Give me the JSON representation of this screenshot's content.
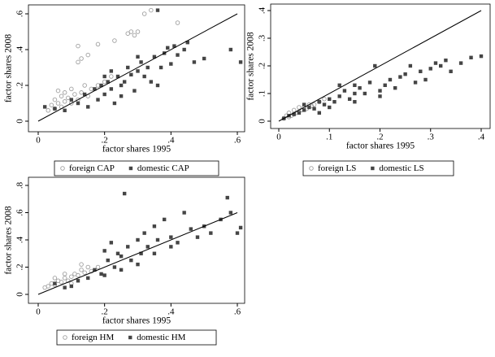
{
  "chart_data": [
    {
      "type": "scatter",
      "xlabel": "factor shares 1995",
      "ylabel": "factor shares 2008",
      "diagonal": true,
      "xlim": [
        0,
        0.6
      ],
      "ylim": [
        0,
        0.6
      ],
      "xticks": [
        0,
        {
          "value": 0.2,
          "label": ".2"
        },
        {
          "value": 0.4,
          "label": ".4"
        },
        {
          "value": 0.6,
          "label": ".6"
        }
      ],
      "yticks": [
        0,
        {
          "value": 0.2,
          "label": ".2"
        },
        {
          "value": 0.4,
          "label": ".4"
        },
        {
          "value": 0.6,
          "label": ".6"
        }
      ],
      "series": [
        {
          "name": "foreign CAP",
          "color": "#a0a0a0",
          "marker": "circle-open",
          "x": [
            0.03,
            0.04,
            0.05,
            0.05,
            0.06,
            0.07,
            0.07,
            0.08,
            0.09,
            0.1,
            0.1,
            0.11,
            0.12,
            0.13,
            0.14,
            0.15,
            0.16,
            0.18,
            0.2,
            0.22,
            0.12,
            0.13,
            0.15,
            0.12,
            0.18,
            0.23,
            0.27,
            0.28,
            0.29,
            0.3,
            0.32,
            0.34,
            0.42,
            0.08,
            0.06
          ],
          "values": [
            0.06,
            0.09,
            0.07,
            0.12,
            0.1,
            0.08,
            0.14,
            0.11,
            0.13,
            0.1,
            0.18,
            0.15,
            0.12,
            0.16,
            0.2,
            0.14,
            0.18,
            0.2,
            0.22,
            0.25,
            0.33,
            0.35,
            0.37,
            0.42,
            0.43,
            0.45,
            0.49,
            0.5,
            0.48,
            0.5,
            0.6,
            0.62,
            0.55,
            0.16,
            0.17
          ]
        },
        {
          "name": "domestic CAP",
          "color": "#454545",
          "marker": "square",
          "x": [
            0.02,
            0.05,
            0.08,
            0.1,
            0.12,
            0.14,
            0.15,
            0.17,
            0.18,
            0.19,
            0.2,
            0.21,
            0.22,
            0.23,
            0.24,
            0.25,
            0.26,
            0.27,
            0.28,
            0.29,
            0.3,
            0.31,
            0.32,
            0.33,
            0.34,
            0.35,
            0.36,
            0.37,
            0.38,
            0.4,
            0.41,
            0.42,
            0.44,
            0.45,
            0.47,
            0.5,
            0.58,
            0.61,
            0.2,
            0.25,
            0.3,
            0.22,
            0.36,
            0.39
          ],
          "values": [
            0.08,
            0.07,
            0.06,
            0.12,
            0.1,
            0.15,
            0.08,
            0.18,
            0.12,
            0.2,
            0.15,
            0.22,
            0.18,
            0.1,
            0.25,
            0.2,
            0.22,
            0.3,
            0.26,
            0.17,
            0.28,
            0.33,
            0.25,
            0.3,
            0.22,
            0.36,
            0.62,
            0.3,
            0.38,
            0.32,
            0.42,
            0.37,
            0.4,
            0.44,
            0.33,
            0.35,
            0.4,
            0.33,
            0.25,
            0.14,
            0.36,
            0.28,
            0.2,
            0.41
          ]
        }
      ]
    },
    {
      "type": "scatter",
      "xlabel": "factor shares 1995",
      "ylabel": "factor shares 2008",
      "diagonal": true,
      "xlim": [
        0,
        0.4
      ],
      "ylim": [
        0,
        0.4
      ],
      "xticks": [
        0,
        {
          "value": 0.1,
          "label": ".1"
        },
        {
          "value": 0.2,
          "label": ".2"
        },
        {
          "value": 0.3,
          "label": ".3"
        },
        {
          "value": 0.4,
          "label": ".4"
        }
      ],
      "yticks": [
        0,
        {
          "value": 0.1,
          "label": ".1"
        },
        {
          "value": 0.2,
          "label": ".2"
        },
        {
          "value": 0.3,
          "label": ".3"
        },
        {
          "value": 0.4,
          "label": ".4"
        }
      ],
      "series": [
        {
          "name": "foreign LS",
          "color": "#a0a0a0",
          "marker": "circle-open",
          "x": [
            0.01,
            0.015,
            0.02,
            0.02,
            0.025,
            0.03,
            0.03,
            0.035,
            0.04,
            0.04,
            0.045,
            0.05,
            0.055,
            0.06,
            0.065,
            0.07,
            0.08,
            0.09
          ],
          "values": [
            0.01,
            0.02,
            0.015,
            0.03,
            0.02,
            0.025,
            0.04,
            0.03,
            0.035,
            0.05,
            0.04,
            0.05,
            0.045,
            0.06,
            0.055,
            0.06,
            0.07,
            0.08
          ]
        },
        {
          "name": "domestic LS",
          "color": "#454545",
          "marker": "square",
          "x": [
            0.01,
            0.02,
            0.03,
            0.04,
            0.05,
            0.06,
            0.07,
            0.08,
            0.09,
            0.1,
            0.11,
            0.12,
            0.13,
            0.14,
            0.15,
            0.15,
            0.16,
            0.17,
            0.18,
            0.19,
            0.2,
            0.21,
            0.22,
            0.23,
            0.24,
            0.25,
            0.26,
            0.27,
            0.28,
            0.29,
            0.3,
            0.31,
            0.32,
            0.33,
            0.34,
            0.36,
            0.38,
            0.4,
            0.12,
            0.1,
            0.08,
            0.05,
            0.15,
            0.2
          ],
          "values": [
            0.01,
            0.02,
            0.025,
            0.03,
            0.04,
            0.05,
            0.045,
            0.07,
            0.06,
            0.08,
            0.07,
            0.09,
            0.11,
            0.08,
            0.1,
            0.07,
            0.12,
            0.1,
            0.14,
            0.2,
            0.11,
            0.13,
            0.15,
            0.12,
            0.16,
            0.17,
            0.2,
            0.14,
            0.18,
            0.15,
            0.19,
            0.21,
            0.2,
            0.22,
            0.18,
            0.21,
            0.23,
            0.235,
            0.13,
            0.05,
            0.03,
            0.06,
            0.13,
            0.09
          ]
        }
      ]
    },
    {
      "type": "scatter",
      "xlabel": "factor shares 1995",
      "ylabel": "factor shares 2008",
      "diagonal": true,
      "xlim": [
        0,
        0.6
      ],
      "ylim": [
        0,
        0.8
      ],
      "xticks": [
        0,
        {
          "value": 0.2,
          "label": ".2"
        },
        {
          "value": 0.4,
          "label": ".4"
        },
        {
          "value": 0.6,
          "label": ".6"
        }
      ],
      "yticks": [
        0,
        {
          "value": 0.2,
          "label": ".2"
        },
        {
          "value": 0.4,
          "label": ".4"
        },
        {
          "value": 0.6,
          "label": ".6"
        },
        {
          "value": 0.8,
          "label": ".8"
        }
      ],
      "series": [
        {
          "name": "foreign HM",
          "color": "#a0a0a0",
          "marker": "circle-open",
          "x": [
            0.02,
            0.03,
            0.04,
            0.05,
            0.06,
            0.07,
            0.08,
            0.09,
            0.1,
            0.11,
            0.12,
            0.13,
            0.14,
            0.15,
            0.16,
            0.05,
            0.08,
            0.1,
            0.13,
            0.18
          ],
          "values": [
            0.05,
            0.06,
            0.08,
            0.07,
            0.1,
            0.09,
            0.12,
            0.1,
            0.13,
            0.15,
            0.14,
            0.18,
            0.16,
            0.2,
            0.17,
            0.12,
            0.15,
            0.08,
            0.22,
            0.2
          ]
        },
        {
          "name": "domestic HM",
          "color": "#454545",
          "marker": "square",
          "x": [
            0.05,
            0.08,
            0.1,
            0.12,
            0.15,
            0.17,
            0.19,
            0.2,
            0.21,
            0.22,
            0.23,
            0.24,
            0.25,
            0.26,
            0.27,
            0.28,
            0.3,
            0.31,
            0.32,
            0.33,
            0.35,
            0.36,
            0.38,
            0.4,
            0.42,
            0.44,
            0.46,
            0.48,
            0.5,
            0.52,
            0.55,
            0.57,
            0.58,
            0.6,
            0.61,
            0.25,
            0.3,
            0.35,
            0.2,
            0.4
          ],
          "values": [
            0.08,
            0.05,
            0.06,
            0.1,
            0.12,
            0.18,
            0.15,
            0.32,
            0.25,
            0.38,
            0.2,
            0.3,
            0.28,
            0.74,
            0.35,
            0.25,
            0.4,
            0.3,
            0.45,
            0.35,
            0.5,
            0.4,
            0.55,
            0.42,
            0.38,
            0.6,
            0.48,
            0.42,
            0.5,
            0.45,
            0.55,
            0.71,
            0.6,
            0.45,
            0.49,
            0.18,
            0.22,
            0.3,
            0.14,
            0.35
          ]
        }
      ]
    }
  ]
}
